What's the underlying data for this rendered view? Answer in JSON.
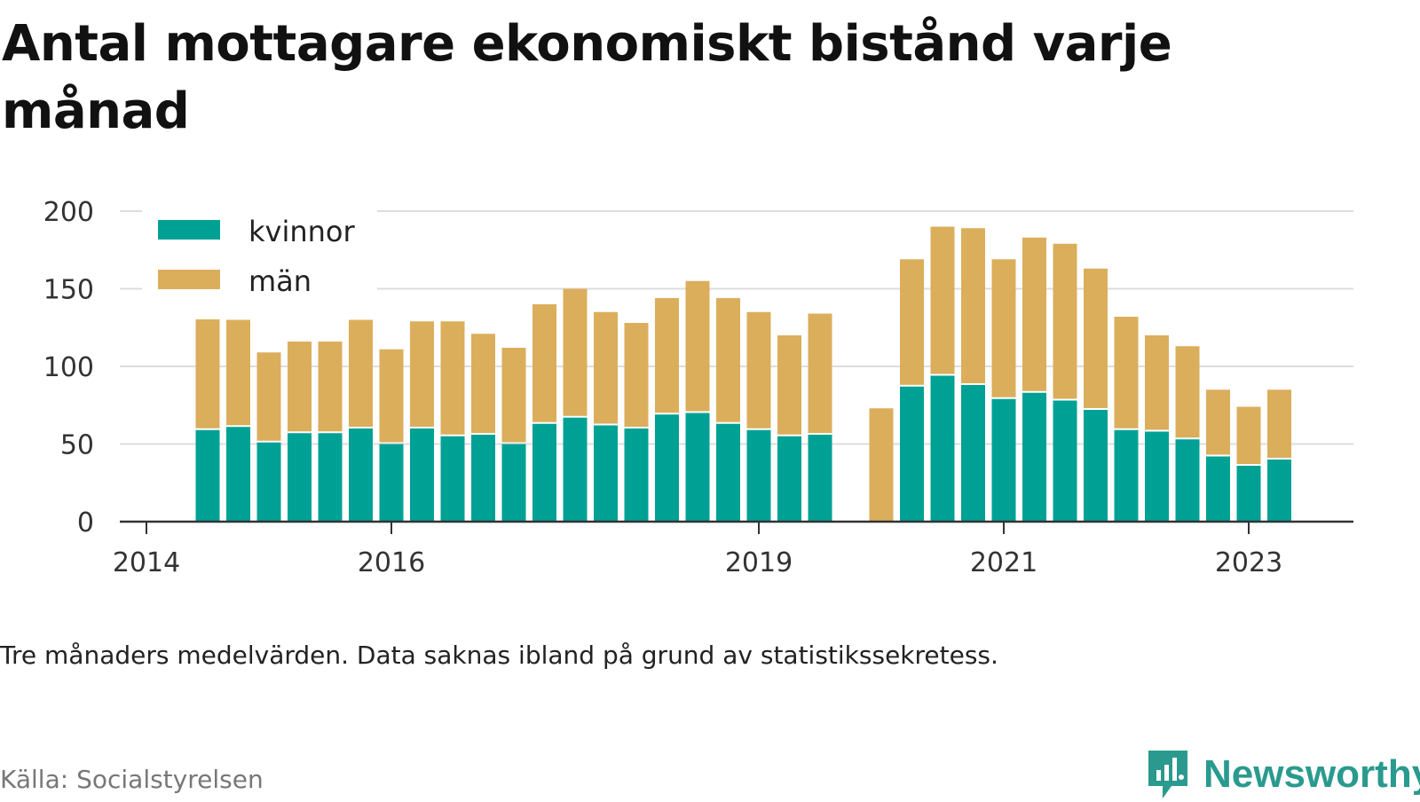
{
  "title": "Antal mottagare ekonomiskt bistånd varje månad",
  "note": "Tre månaders medelvärden. Data saknas ibland på grund av statistikssekretess.",
  "source": "Källa: Socialstyrelsen",
  "brand": {
    "name": "Newsworthy",
    "icon": "newsworthy-logo-icon",
    "color": "#2a9a8e"
  },
  "chart_data": {
    "type": "bar",
    "stacked": true,
    "title": "Antal mottagare ekonomiskt bistånd varje månad",
    "xlabel": "",
    "ylabel": "",
    "ylim": [
      0,
      200
    ],
    "yticks": [
      0,
      50,
      100,
      150,
      200
    ],
    "grid": true,
    "legend_position": "top-left",
    "x_tick_labels": [
      {
        "label": "2014",
        "index": 0
      },
      {
        "label": "2016",
        "index": 8
      },
      {
        "label": "2019",
        "index": 20
      },
      {
        "label": "2021",
        "index": 28
      },
      {
        "label": "2023",
        "index": 36
      }
    ],
    "categories": [
      "2014 Q1",
      "2014 Q2",
      "2014 Q3",
      "2014 Q4",
      "2015 Q1",
      "2015 Q2",
      "2015 Q3",
      "2015 Q4",
      "2016 Q1",
      "2016 Q2",
      "2016 Q3",
      "2016 Q4",
      "2017 Q1",
      "2017 Q2",
      "2017 Q3",
      "2017 Q4",
      "2018 Q1",
      "2018 Q2",
      "2018 Q3",
      "2018 Q4",
      "2019 Q1",
      "2019 Q2",
      "2019 Q3",
      "2019 Q4",
      "2020 Q1",
      "2020 Q2",
      "2020 Q3",
      "2020 Q4",
      "2021 Q1",
      "2021 Q2",
      "2021 Q3",
      "2021 Q4",
      "2022 Q1",
      "2022 Q2",
      "2022 Q3",
      "2022 Q4",
      "2023 Q1",
      "2023 Q2"
    ],
    "series": [
      {
        "name": "kvinnor",
        "color": "#00a195",
        "values": [
          null,
          null,
          59,
          61,
          51,
          57,
          57,
          60,
          50,
          60,
          55,
          56,
          50,
          63,
          67,
          62,
          60,
          69,
          70,
          63,
          59,
          55,
          56,
          null,
          null,
          87,
          94,
          88,
          79,
          83,
          78,
          72,
          59,
          58,
          53,
          42,
          36,
          40
        ]
      },
      {
        "name": "män",
        "color": "#dbae5c",
        "values": [
          null,
          null,
          72,
          69,
          58,
          59,
          59,
          70,
          61,
          69,
          74,
          65,
          62,
          77,
          83,
          73,
          68,
          75,
          85,
          81,
          76,
          65,
          78,
          null,
          73,
          82,
          96,
          101,
          90,
          100,
          101,
          91,
          73,
          62,
          60,
          43,
          38,
          45
        ]
      }
    ]
  }
}
